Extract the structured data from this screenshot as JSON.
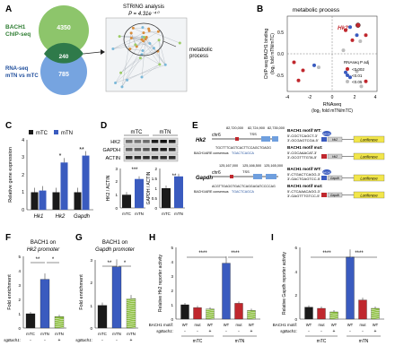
{
  "panels": {
    "A": {
      "letter": "A",
      "bach1": "BACH1",
      "chipseq": "ChIP-seq",
      "rnaseq": "RNA-seq",
      "rnaseq2": "mTN vs mTC",
      "n_top": "4350",
      "n_overlap": "240",
      "n_bottom": "785",
      "string_title": "STRING analysis",
      "pvalue": "P = 4.31e⁻⁴⁰",
      "process": "metabolic",
      "process2": "process"
    },
    "B": {
      "letter": "B",
      "title": "metabolic process",
      "gene": "Hk2",
      "ylabel1": "ChIP-seq BACH1 binding",
      "ylabel2": "(log₂ fold mTN/mTC)",
      "xlabel1": "RNAseq",
      "xlabel2": "(log₂ fold mTN/mTC)",
      "legend_title": "RNAseq P adj",
      "legend": [
        "<0.002",
        "<0.01",
        "<0.05"
      ],
      "xticks": [
        "-4",
        "-2",
        "0",
        "2",
        "4"
      ],
      "yticks": [
        "0.5",
        "0.0",
        "-0.5"
      ]
    },
    "C": {
      "letter": "C",
      "legend": [
        "mTC",
        "mTN"
      ],
      "ylabel": "Relative gene expression",
      "genes": [
        "Hk1",
        "Hk2",
        "Gapdh"
      ],
      "yticks": [
        "0",
        "1",
        "2",
        "3",
        "4"
      ],
      "stars": [
        "*",
        "**"
      ]
    },
    "D": {
      "letter": "D",
      "groups": [
        "mTC",
        "mTN"
      ],
      "blots": [
        "HK2",
        "GAPDH",
        "ACTIN"
      ],
      "ylabel_left": "HK2 / ACTIN",
      "ylabel_right": "GAPDH / ACTIN",
      "xcats": [
        "mTC",
        "mTN"
      ],
      "stars_left": "***",
      "stars_right": "**",
      "yticks_left": [
        "0",
        "1",
        "2",
        "3"
      ],
      "yticks_right": [
        "0",
        "0.5",
        "1",
        "1.5",
        "2"
      ]
    },
    "E": {
      "letter": "E",
      "gene1": "Hk2",
      "gene2": "Gapdh",
      "chr1": "chr6",
      "chr2": "chr6",
      "coords1": [
        "82,720,000",
        "82,724,900",
        "82,735,000"
      ],
      "coords2": [
        "125,167,000",
        "125,166,500",
        "125,165,000"
      ],
      "tss": "TSS",
      "cons_label": "BACH1/ARE consensus",
      "seq1": "TGCTTTCAGTCACTTCCAGCTGAGG",
      "seq1b": "TGACTCAGCA",
      "seq2": "ACGTTGAGGTGACTCAGGAGATCCCCAG",
      "seq2b": "TGACTCAGCA",
      "wt1": "BACH1 motif WT:",
      "mut1": "BACH1 motif mut:",
      "wt2": "BACH1 motif WT:",
      "mut2": "BACH1 motif mut:",
      "seqwt1a": "5'-CGCTCAGCT-3'",
      "seqwt1b": "3'-GCGAGTCGA-5'",
      "seqmut1a": "5'-CGCAAACAT-3'",
      "seqmut1b": "3'-GCGTTTGTA-5'",
      "seqwt2a": "5'-CTGACTCAGG-3'",
      "seqwt2b": "3'-GACTGAGTCC-5'",
      "seqmut2a": "5'-CTCAAACAGG-3'",
      "seqmut2b": "3'-GAGTTTGTCC-5'",
      "luc": "Luciferase",
      "prom1": "Hk2",
      "prom2": "Gapdh",
      "bach": "BACH1"
    },
    "F": {
      "letter": "F",
      "title1": "BACH1 on",
      "title2": "Hk2 promoter",
      "ylabel": "Fold enrichment",
      "yticks": [
        "0",
        "1",
        "2",
        "3",
        "4",
        "5"
      ],
      "xcats": [
        "mTC",
        "mTN",
        "mTN"
      ],
      "sg_label": "sgBach1:",
      "sg_vals": [
        "-",
        "-",
        "+"
      ],
      "stars": [
        "**",
        "*"
      ]
    },
    "G": {
      "letter": "G",
      "title1": "BACH1 on",
      "title2": "Gapdh promoter",
      "ylabel": "Fold enrichment",
      "yticks": [
        "0",
        "1",
        "2",
        "3"
      ],
      "xcats": [
        "mTC",
        "mTN",
        "mTN"
      ],
      "sg_label": "sgBach1:",
      "sg_vals": [
        "-",
        "-",
        "+"
      ],
      "stars": [
        "**",
        "*"
      ]
    },
    "H": {
      "letter": "H",
      "ylabel1": "Relative Hk2 reporter activity",
      "yticks": [
        "0",
        "1",
        "2",
        "3",
        "4",
        "5"
      ],
      "stars": [
        "****",
        "****"
      ],
      "motif_label": "BACH1 motif:",
      "motifs": [
        "WT",
        "mut",
        "WT",
        "WT",
        "mut",
        "WT"
      ],
      "sg_label": "sgBach1:",
      "sg_vals": [
        "-",
        "-",
        "+",
        "-",
        "-",
        "+"
      ],
      "groups": [
        "mTC",
        "mTN"
      ]
    },
    "I": {
      "letter": "I",
      "ylabel1": "Relative Gapdh reporter activity",
      "yticks": [
        "0",
        "2",
        "4",
        "6"
      ],
      "stars": [
        "****",
        "****"
      ],
      "motif_label": "BACH1 motif:",
      "motifs": [
        "WT",
        "mut",
        "WT",
        "WT",
        "mut",
        "WT"
      ],
      "sg_label": "sgBach1:",
      "sg_vals": [
        "-",
        "-",
        "+",
        "-",
        "-",
        "+"
      ],
      "groups": [
        "mTC",
        "mTN"
      ]
    }
  },
  "colors": {
    "mtc": "#1a1a1a",
    "mtn": "#3a5bbf",
    "red": "#c0272d",
    "green": "#8cbf3f",
    "venn_green": "#8dc56b",
    "venn_blue": "#6f9fde",
    "text": "#222222"
  },
  "chart_data": [
    {
      "type": "bar",
      "panel": "C",
      "categories": [
        "Hk1",
        "Hk2",
        "Gapdh"
      ],
      "series": [
        {
          "name": "mTC",
          "values": [
            1.0,
            1.0,
            1.0
          ]
        },
        {
          "name": "mTN",
          "values": [
            1.1,
            2.7,
            3.1
          ]
        }
      ],
      "ylim": [
        0,
        4
      ]
    },
    {
      "type": "bar",
      "panel": "D-left",
      "categories": [
        "mTC",
        "mTN"
      ],
      "values": [
        1.0,
        2.2
      ],
      "ylim": [
        0,
        3
      ]
    },
    {
      "type": "bar",
      "panel": "D-right",
      "categories": [
        "mTC",
        "mTN"
      ],
      "values": [
        1.0,
        1.6
      ],
      "ylim": [
        0,
        2
      ]
    },
    {
      "type": "bar",
      "panel": "F",
      "categories": [
        "mTC",
        "mTN",
        "mTN sgBach1"
      ],
      "values": [
        1.0,
        3.4,
        0.8
      ],
      "ylim": [
        0,
        5
      ]
    },
    {
      "type": "bar",
      "panel": "G",
      "categories": [
        "mTC",
        "mTN",
        "mTN sgBach1"
      ],
      "values": [
        1.0,
        2.7,
        1.3
      ],
      "ylim": [
        0,
        3
      ]
    },
    {
      "type": "bar",
      "panel": "H",
      "categories": [
        "mTC WT",
        "mTC mut",
        "mTC WT sgBach1",
        "mTN WT",
        "mTN mut",
        "mTN WT sgBach1"
      ],
      "values": [
        1.0,
        0.8,
        0.7,
        3.9,
        1.1,
        0.6
      ],
      "ylim": [
        0,
        5
      ]
    },
    {
      "type": "bar",
      "panel": "I",
      "categories": [
        "mTC WT",
        "mTC mut",
        "mTC WT sgBach1",
        "mTN WT",
        "mTN mut",
        "mTN WT sgBach1"
      ],
      "values": [
        1.0,
        0.9,
        0.6,
        5.2,
        1.6,
        0.9
      ],
      "ylim": [
        0,
        6
      ]
    },
    {
      "type": "scatter",
      "panel": "B",
      "xlim": [
        -4,
        4
      ],
      "ylim": [
        -0.7,
        0.8
      ],
      "points": [
        {
          "x": 2.3,
          "y": 0.62,
          "p": "<0.002",
          "label": "Hk2"
        },
        {
          "x": 1.2,
          "y": 0.52,
          "p": "<0.002"
        },
        {
          "x": 1.6,
          "y": 0.58,
          "p": "<0.01"
        },
        {
          "x": 2.2,
          "y": 0.42,
          "p": "<0.01"
        },
        {
          "x": 1.8,
          "y": 0.32,
          "p": "<0.002"
        },
        {
          "x": 3.0,
          "y": 0.42,
          "p": "<0.002"
        },
        {
          "x": 2.5,
          "y": 0.3,
          "p": "<0.05"
        },
        {
          "x": 1.0,
          "y": 0.12,
          "p": "<0.05"
        },
        {
          "x": -3.4,
          "y": -0.12,
          "p": "<0.002"
        },
        {
          "x": -2.6,
          "y": -0.28,
          "p": "<0.002"
        },
        {
          "x": -1.6,
          "y": -0.18,
          "p": "<0.01"
        },
        {
          "x": -1.2,
          "y": -0.22,
          "p": "<0.05"
        },
        {
          "x": 1.2,
          "y": -0.32,
          "p": "<0.01"
        },
        {
          "x": 1.6,
          "y": -0.42,
          "p": "<0.01"
        },
        {
          "x": 2.2,
          "y": -0.3,
          "p": "<0.05"
        },
        {
          "x": 3.0,
          "y": -0.5,
          "p": "<0.002"
        },
        {
          "x": 2.6,
          "y": -0.6,
          "p": "<0.05"
        },
        {
          "x": -3.0,
          "y": -0.48,
          "p": "<0.002"
        }
      ]
    }
  ]
}
